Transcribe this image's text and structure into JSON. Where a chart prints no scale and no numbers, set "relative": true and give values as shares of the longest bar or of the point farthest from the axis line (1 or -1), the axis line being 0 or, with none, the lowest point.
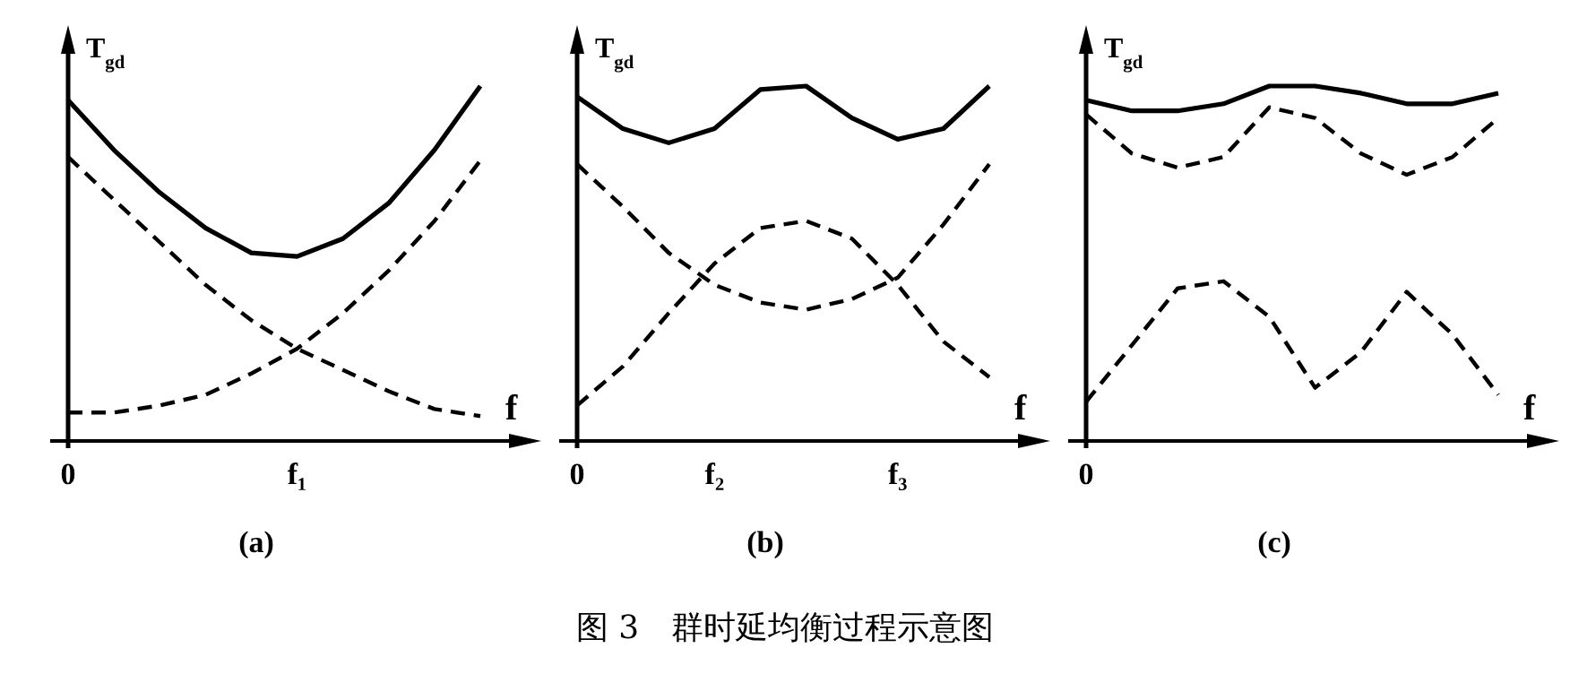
{
  "chart_data": [
    {
      "type": "line",
      "relative": true,
      "title": "(a)",
      "xlabel": "f",
      "ylabel": "T$_{gd}$",
      "categories": [
        "0",
        null,
        null,
        null,
        null,
        "f₁",
        null,
        null,
        null,
        null
      ],
      "annotations": [
        "图 3　群时延均衡过程示意图"
      ],
      "series": [
        {
          "color": "#000000",
          "line_style": "solid",
          "values": [
            0.96,
            0.82,
            0.7,
            0.6,
            0.53,
            0.52,
            0.57,
            0.67,
            0.82,
            1
          ]
        },
        {
          "color": "#000000",
          "line_style": "dashed",
          "values": [
            0.8,
            0.68,
            0.56,
            0.44,
            0.34,
            0.26,
            0.2,
            0.14,
            0.09,
            0.07
          ]
        },
        {
          "color": "#000000",
          "line_style": "dashed",
          "values": [
            0.08,
            0.08,
            0.1,
            0.13,
            0.19,
            0.26,
            0.36,
            0.48,
            0.62,
            0.79
          ]
        }
      ]
    },
    {
      "type": "line",
      "relative": true,
      "title": "(b)",
      "xlabel": "f",
      "ylabel": "T$_{gd}$",
      "categories": [
        "0",
        null,
        null,
        "f₂",
        null,
        null,
        null,
        "f₃",
        null,
        null
      ],
      "series": [
        {
          "color": "#000000",
          "line_style": "solid",
          "values": [
            0.97,
            0.88,
            0.84,
            0.88,
            0.99,
            1,
            0.91,
            0.85,
            0.88,
            1
          ]
        },
        {
          "color": "#000000",
          "line_style": "dashed",
          "values": [
            0.78,
            0.66,
            0.53,
            0.44,
            0.39,
            0.37,
            0.4,
            0.46,
            0.61,
            0.78
          ]
        },
        {
          "color": "#000000",
          "line_style": "dashed",
          "values": [
            0.1,
            0.21,
            0.36,
            0.5,
            0.6,
            0.62,
            0.57,
            0.44,
            0.28,
            0.18
          ]
        }
      ]
    },
    {
      "type": "line",
      "relative": true,
      "title": "(c)",
      "xlabel": "f",
      "ylabel": "T$_{gd}$",
      "categories": [
        null,
        null,
        null,
        null,
        null,
        null,
        null,
        null,
        null,
        null
      ],
      "annotations": [
        "0"
      ],
      "series": [
        {
          "color": "#000000",
          "line_style": "solid",
          "values": [
            0.96,
            0.93,
            0.93,
            0.95,
            1,
            1,
            0.98,
            0.95,
            0.95,
            0.98
          ]
        },
        {
          "color": "#000000",
          "line_style": "dashed",
          "values": [
            0.92,
            0.81,
            0.77,
            0.8,
            0.94,
            0.91,
            0.81,
            0.75,
            0.8,
            0.91
          ]
        },
        {
          "color": "#000000",
          "line_style": "dashed",
          "values": [
            0.11,
            0.27,
            0.43,
            0.45,
            0.35,
            0.15,
            0.25,
            0.42,
            0.3,
            0.13
          ]
        }
      ]
    }
  ]
}
